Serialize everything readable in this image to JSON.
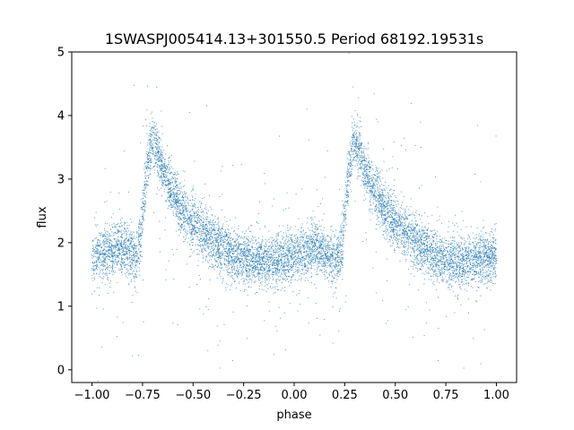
{
  "chart_data": {
    "type": "scatter",
    "title": "1SWASPJ005414.13+301550.5 Period 68192.19531s",
    "xlabel": "phase",
    "ylabel": "flux",
    "xlim": [
      -1.1,
      1.1
    ],
    "ylim": [
      -0.2,
      5.0
    ],
    "x_ticks": [
      -1.0,
      -0.75,
      -0.5,
      -0.25,
      0.0,
      0.25,
      0.5,
      0.75,
      1.0
    ],
    "x_tick_labels": [
      "−1.00",
      "−0.75",
      "−0.50",
      "−0.25",
      "0.00",
      "0.25",
      "0.50",
      "0.75",
      "1.00"
    ],
    "y_ticks": [
      0,
      1,
      2,
      3,
      4,
      5
    ],
    "y_tick_labels": [
      "0",
      "1",
      "2",
      "3",
      "4",
      "5"
    ],
    "grid": false,
    "legend": "none",
    "point_color": "#1f77b4",
    "series": [
      {
        "x": [
          -1.0,
          -0.95,
          -0.9,
          -0.85,
          -0.8,
          -0.78,
          -0.76,
          -0.74,
          -0.72,
          -0.7,
          -0.68,
          -0.65,
          -0.6,
          -0.55,
          -0.5,
          -0.45,
          -0.4,
          -0.35,
          -0.3,
          -0.25,
          -0.2,
          -0.15,
          -0.1,
          -0.05,
          0.0,
          0.05,
          0.1,
          0.15,
          0.2,
          0.22,
          0.24,
          0.26,
          0.28,
          0.3,
          0.32,
          0.35,
          0.4,
          0.45,
          0.5,
          0.55,
          0.6,
          0.65,
          0.7,
          0.75,
          0.8,
          0.85,
          0.9,
          0.95,
          1.0
        ],
        "y": [
          1.75,
          1.8,
          1.85,
          1.95,
          1.85,
          1.7,
          2.05,
          2.8,
          3.35,
          3.6,
          3.45,
          3.15,
          2.8,
          2.5,
          2.3,
          2.15,
          2.0,
          1.9,
          1.8,
          1.75,
          1.7,
          1.7,
          1.72,
          1.75,
          1.78,
          1.85,
          1.95,
          1.85,
          1.75,
          1.7,
          2.05,
          2.8,
          3.35,
          3.6,
          3.45,
          3.15,
          2.8,
          2.5,
          2.3,
          2.15,
          2.0,
          1.9,
          1.8,
          1.75,
          1.7,
          1.7,
          1.72,
          1.75,
          1.78
        ]
      }
    ]
  }
}
